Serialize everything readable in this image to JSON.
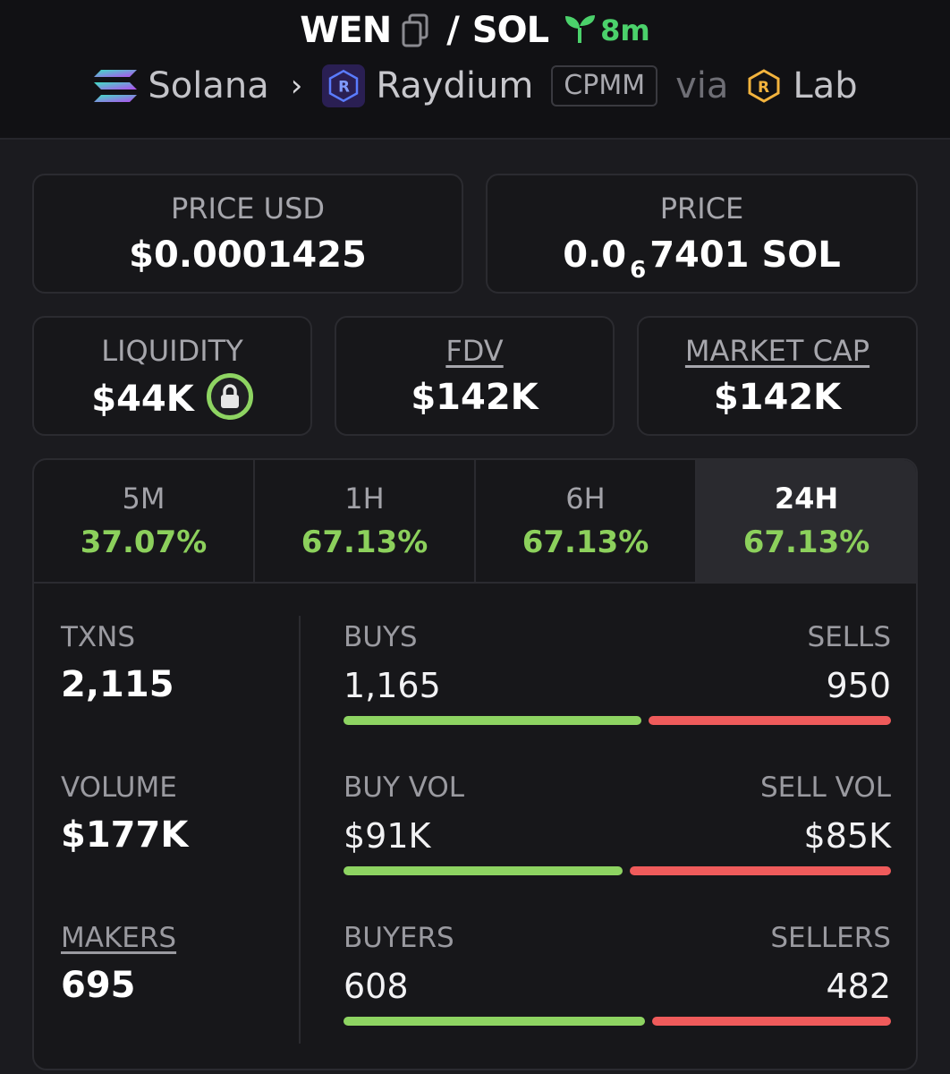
{
  "header": {
    "base": "WEN",
    "separator": "/",
    "quote": "SOL",
    "age": "8m",
    "chain": "Solana",
    "dex": "Raydium",
    "pool_type": "CPMM",
    "via": "via",
    "launchpad": "Lab",
    "icons": [
      "copy-icon",
      "seedling-icon",
      "solana-icon",
      "raydium-icon",
      "raydium-lab-icon"
    ]
  },
  "price": {
    "usd_label": "PRICE USD",
    "usd_value": "$0.0001425",
    "native_label": "PRICE",
    "native_prefix": "0.0",
    "native_zeros": "6",
    "native_digits": "7401 SOL"
  },
  "stats": {
    "liquidity_label": "LIQUIDITY",
    "liquidity_value": "$44K",
    "fdv_label": "FDV",
    "fdv_value": "$142K",
    "mcap_label": "MARKET CAP",
    "mcap_value": "$142K"
  },
  "periods": [
    {
      "label": "5M",
      "change": "37.07%"
    },
    {
      "label": "1H",
      "change": "67.13%"
    },
    {
      "label": "6H",
      "change": "67.13%"
    },
    {
      "label": "24H",
      "change": "67.13%",
      "active": true
    }
  ],
  "metrics": {
    "txns_label": "TXNS",
    "txns_value": "2,115",
    "volume_label": "VOLUME",
    "volume_value": "$177K",
    "makers_label": "MAKERS",
    "makers_value": "695"
  },
  "splits": [
    {
      "left_label": "BUYS",
      "right_label": "SELLS",
      "left_value": "1,165",
      "right_value": "950",
      "buy_share": 0.551
    },
    {
      "left_label": "BUY VOL",
      "right_label": "SELL VOL",
      "left_value": "$91K",
      "right_value": "$85K",
      "buy_share": 0.517
    },
    {
      "left_label": "BUYERS",
      "right_label": "SELLERS",
      "left_value": "608",
      "right_value": "482",
      "buy_share": 0.558
    }
  ],
  "colors": {
    "up": "#8cd05c",
    "buy_bar": "#8ed462",
    "sell_bar": "#ef5b5b",
    "age": "#4bd16b"
  }
}
